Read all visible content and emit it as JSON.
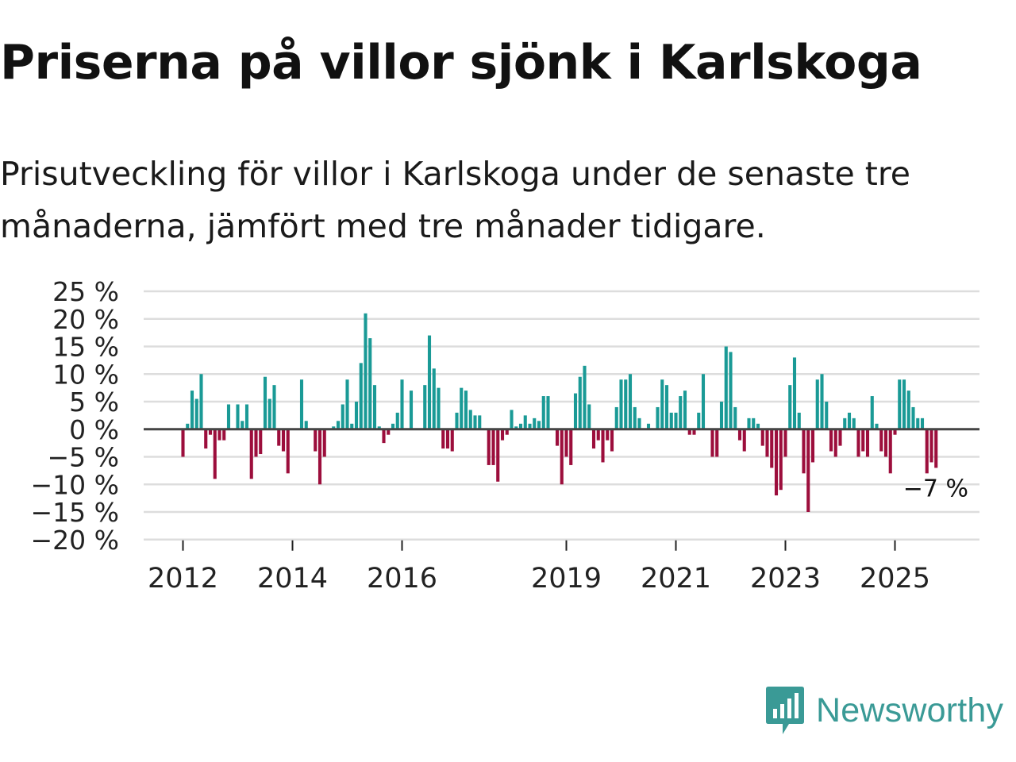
{
  "title": "Priserna på villor sjönk i Karlskoga",
  "subtitle": "Prisutveckling för villor i Karlskoga under de senaste tre månaderna, jämfört med tre månader tidigare.",
  "brand": {
    "name": "Newsworthy",
    "color": "#3a9a96",
    "icon": "newsworthy-logo-icon"
  },
  "colors": {
    "positive": "#1a9a96",
    "negative": "#9c0e3c",
    "zero_line": "#444444",
    "grid": "#dddddd"
  },
  "chart_data": {
    "type": "bar",
    "title": "Priserna på villor sjönk i Karlskoga",
    "xlabel": "",
    "ylabel": "",
    "ylim": [
      -20,
      25
    ],
    "y_ticks": [
      25,
      20,
      15,
      10,
      5,
      0,
      -5,
      -10,
      -15,
      -20
    ],
    "y_tick_labels": [
      "25 %",
      "20 %",
      "15 %",
      "10 %",
      "5 %",
      "0 %",
      "−5 %",
      "−10 %",
      "−15 %",
      "−20 %"
    ],
    "x_ticks": [
      {
        "label": "2012",
        "year": 2012
      },
      {
        "label": "2014",
        "year": 2014
      },
      {
        "label": "2016",
        "year": 2016
      },
      {
        "label": "2019",
        "year": 2019
      },
      {
        "label": "2021",
        "year": 2021
      },
      {
        "label": "2023",
        "year": 2023
      },
      {
        "label": "2025",
        "year": 2025
      }
    ],
    "start": {
      "year": 2012,
      "month": 1
    },
    "grid": true,
    "end_label": "−7 %",
    "values": [
      -5,
      1,
      7,
      5.5,
      10,
      -3.5,
      -1,
      -9,
      -2,
      -2,
      4.5,
      0,
      4.5,
      1.5,
      4.5,
      -9,
      -5,
      -4.5,
      9.5,
      5.5,
      8,
      -3,
      -4,
      -8,
      0,
      0,
      9,
      1.5,
      0,
      -4,
      -10,
      -5,
      0,
      0.5,
      1.5,
      4.5,
      9,
      1,
      5,
      12,
      21,
      16.5,
      8,
      0.5,
      -2.5,
      -1,
      1,
      3,
      9,
      0,
      7,
      0,
      0,
      8,
      17,
      11,
      7.5,
      -3.5,
      -3.5,
      -4,
      3,
      7.5,
      7,
      3.5,
      2.5,
      2.5,
      0,
      -6.5,
      -6.5,
      -9.5,
      -2,
      -1,
      3.5,
      0.5,
      1,
      2.5,
      1,
      2,
      1.5,
      6,
      6,
      0,
      -3,
      -10,
      -5,
      -6.5,
      6.5,
      9.5,
      11.5,
      4.5,
      -3.5,
      -2,
      -6,
      -2,
      -4,
      4,
      9,
      9,
      10,
      4,
      2,
      0,
      1,
      0,
      4,
      9,
      8,
      3,
      3,
      6,
      7,
      -1,
      -1,
      3,
      10,
      0,
      -5,
      -5,
      5,
      15,
      14,
      4,
      -2,
      -4,
      2,
      2,
      1,
      -3,
      -5,
      -7,
      -12,
      -11,
      -5,
      8,
      13,
      3,
      -8,
      -15,
      -6,
      9,
      10,
      5,
      -4,
      -5,
      -3,
      2,
      3,
      2,
      -5,
      -4,
      -5,
      6,
      1,
      -4,
      -5,
      -8,
      -1,
      9,
      9,
      7,
      4,
      2,
      2,
      -8,
      -6,
      -7
    ]
  }
}
